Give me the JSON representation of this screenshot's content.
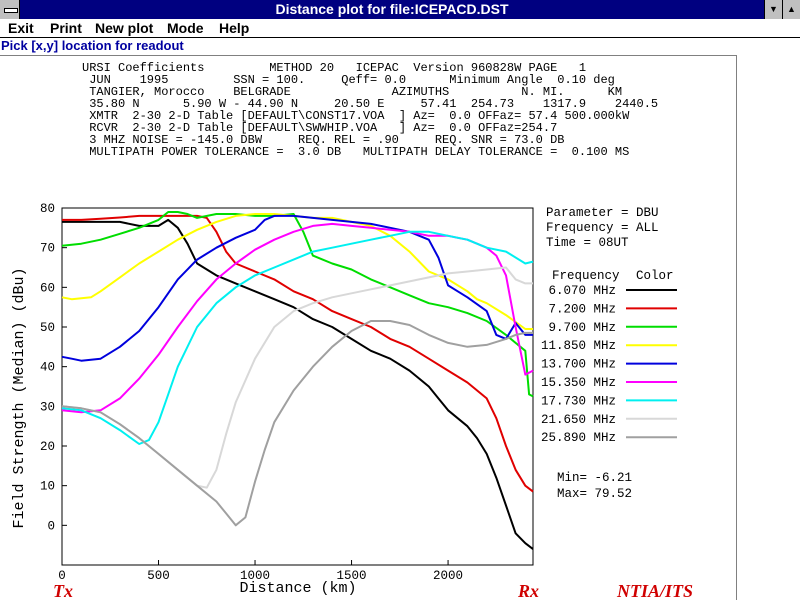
{
  "window": {
    "title": "Distance plot for file:ICEPACD.DST"
  },
  "menu": [
    "Exit",
    "Print",
    "New plot",
    "Mode",
    "Help"
  ],
  "status": "Pick [x,y] location for readout",
  "header_lines": [
    "URSI Coefficients         METHOD 20   ICEPAC  Version 960828W PAGE   1",
    " JUN    1995         SSN = 100.     Qeff= 0.0      Minimum Angle  0.10 deg",
    " TANGIER, Morocco    BELGRADE              AZIMUTHS          N. MI.      KM",
    " 35.80 N      5.90 W - 44.90 N     20.50 E     57.41  254.73    1317.9    2440.5",
    " XMTR  2-30 2-D Table [DEFAULT\\CONST17.VOA  ] Az=  0.0 OFFaz= 57.4 500.000kW",
    " RCVR  2-30 2-D Table [DEFAULT\\SWWHIP.VOA   ] Az=  0.0 OFFaz=254.7",
    " 3 MHZ NOISE = -145.0 DBW     REQ. REL = .90     REQ. SNR = 73.0 DB",
    " MULTIPATH POWER TOLERANCE =  3.0 DB   MULTIPATH DELAY TOLERANCE =  0.100 MS"
  ],
  "param_lines": [
    "Parameter = DBU",
    "Frequency = ALL",
    "Time = 08UT"
  ],
  "legend_header": {
    "freq": "Frequency",
    "color": "Color"
  },
  "min_label": "Min=   -6.21",
  "max_label": "Max=   79.52",
  "bottom": {
    "tx": "Tx",
    "rx": "Rx",
    "org": "NTIA/ITS"
  },
  "chart_data": {
    "type": "line",
    "xlabel": "Distance (km)",
    "ylabel": "Field Strength (Median) (dBu)",
    "xlim": [
      0,
      2440
    ],
    "ylim": [
      -10,
      80
    ],
    "xticks": [
      0,
      500,
      1000,
      1500,
      2000
    ],
    "yticks": [
      80,
      70,
      60,
      50,
      40,
      30,
      20,
      10,
      0
    ],
    "series": [
      {
        "name": "6.070 MHz",
        "color": "#000000",
        "points": [
          [
            0,
            76.5
          ],
          [
            100,
            76.5
          ],
          [
            200,
            76.5
          ],
          [
            300,
            76.5
          ],
          [
            400,
            75.5
          ],
          [
            500,
            75.5
          ],
          [
            550,
            77
          ],
          [
            600,
            75
          ],
          [
            650,
            71
          ],
          [
            700,
            66
          ],
          [
            800,
            63
          ],
          [
            900,
            61
          ],
          [
            1000,
            59
          ],
          [
            1100,
            57
          ],
          [
            1200,
            55
          ],
          [
            1300,
            52
          ],
          [
            1400,
            50
          ],
          [
            1500,
            47
          ],
          [
            1600,
            44
          ],
          [
            1700,
            42
          ],
          [
            1800,
            39
          ],
          [
            1900,
            35
          ],
          [
            1950,
            32
          ],
          [
            2000,
            29
          ],
          [
            2100,
            25
          ],
          [
            2150,
            22
          ],
          [
            2200,
            18
          ],
          [
            2250,
            12
          ],
          [
            2300,
            5
          ],
          [
            2350,
            -2
          ],
          [
            2400,
            -4.5
          ],
          [
            2440,
            -6
          ]
        ]
      },
      {
        "name": "7.200 MHz",
        "color": "#e00000",
        "points": [
          [
            0,
            77
          ],
          [
            100,
            77
          ],
          [
            200,
            77.3
          ],
          [
            300,
            77.6
          ],
          [
            400,
            78
          ],
          [
            500,
            78
          ],
          [
            600,
            78
          ],
          [
            700,
            78
          ],
          [
            750,
            77.5
          ],
          [
            800,
            74
          ],
          [
            850,
            69
          ],
          [
            900,
            66
          ],
          [
            1000,
            64
          ],
          [
            1100,
            62
          ],
          [
            1200,
            59
          ],
          [
            1300,
            57
          ],
          [
            1400,
            54
          ],
          [
            1500,
            52
          ],
          [
            1600,
            50
          ],
          [
            1700,
            47
          ],
          [
            1800,
            45
          ],
          [
            1900,
            42
          ],
          [
            2000,
            39
          ],
          [
            2100,
            36
          ],
          [
            2200,
            32
          ],
          [
            2250,
            27
          ],
          [
            2300,
            20
          ],
          [
            2350,
            14
          ],
          [
            2400,
            10
          ],
          [
            2440,
            8.5
          ]
        ]
      },
      {
        "name": "9.700 MHz",
        "color": "#00dd00",
        "points": [
          [
            0,
            70.5
          ],
          [
            100,
            71
          ],
          [
            200,
            72
          ],
          [
            300,
            73.5
          ],
          [
            400,
            75
          ],
          [
            500,
            77
          ],
          [
            550,
            79
          ],
          [
            600,
            79
          ],
          [
            650,
            78.5
          ],
          [
            700,
            77.5
          ],
          [
            800,
            78.5
          ],
          [
            900,
            78.5
          ],
          [
            1000,
            78
          ],
          [
            1100,
            78
          ],
          [
            1200,
            78.5
          ],
          [
            1250,
            74
          ],
          [
            1300,
            68
          ],
          [
            1350,
            67
          ],
          [
            1400,
            66
          ],
          [
            1500,
            64.5
          ],
          [
            1600,
            62
          ],
          [
            1700,
            60
          ],
          [
            1800,
            58
          ],
          [
            1900,
            56
          ],
          [
            2000,
            55
          ],
          [
            2100,
            53.5
          ],
          [
            2200,
            51.5
          ],
          [
            2300,
            48
          ],
          [
            2350,
            46
          ],
          [
            2400,
            44
          ],
          [
            2420,
            33
          ],
          [
            2440,
            32.5
          ]
        ]
      },
      {
        "name": "11.850 MHz",
        "color": "#ffff00",
        "points": [
          [
            0,
            57.5
          ],
          [
            50,
            57
          ],
          [
            150,
            57.5
          ],
          [
            200,
            59
          ],
          [
            300,
            62.5
          ],
          [
            400,
            66
          ],
          [
            500,
            69
          ],
          [
            600,
            72
          ],
          [
            700,
            74.5
          ],
          [
            800,
            76.5
          ],
          [
            900,
            78
          ],
          [
            1000,
            78.5
          ],
          [
            1100,
            78.5
          ],
          [
            1200,
            78
          ],
          [
            1300,
            77.5
          ],
          [
            1400,
            77.5
          ],
          [
            1500,
            76.5
          ],
          [
            1550,
            76
          ],
          [
            1600,
            75.5
          ],
          [
            1700,
            73
          ],
          [
            1800,
            69
          ],
          [
            1900,
            64
          ],
          [
            1950,
            63
          ],
          [
            2000,
            62
          ],
          [
            2100,
            59
          ],
          [
            2150,
            57
          ],
          [
            2200,
            56
          ],
          [
            2300,
            53
          ],
          [
            2400,
            49.5
          ],
          [
            2440,
            49.5
          ]
        ]
      },
      {
        "name": "13.700 MHz",
        "color": "#0000dd",
        "points": [
          [
            0,
            42.5
          ],
          [
            50,
            42
          ],
          [
            100,
            41.5
          ],
          [
            200,
            42
          ],
          [
            300,
            45
          ],
          [
            400,
            49
          ],
          [
            500,
            55
          ],
          [
            600,
            62
          ],
          [
            700,
            67
          ],
          [
            800,
            70
          ],
          [
            900,
            72.5
          ],
          [
            1000,
            74.5
          ],
          [
            1050,
            77
          ],
          [
            1100,
            78
          ],
          [
            1200,
            78
          ],
          [
            1300,
            77.5
          ],
          [
            1400,
            77
          ],
          [
            1500,
            76.5
          ],
          [
            1600,
            76
          ],
          [
            1700,
            75
          ],
          [
            1800,
            74
          ],
          [
            1900,
            72
          ],
          [
            1950,
            67.5
          ],
          [
            2000,
            60.5
          ],
          [
            2050,
            59
          ],
          [
            2100,
            57.5
          ],
          [
            2200,
            54
          ],
          [
            2250,
            48
          ],
          [
            2300,
            47
          ],
          [
            2350,
            51
          ],
          [
            2400,
            48
          ],
          [
            2440,
            48
          ]
        ]
      },
      {
        "name": "15.350 MHz",
        "color": "#ff00ff",
        "points": [
          [
            0,
            29
          ],
          [
            100,
            28.5
          ],
          [
            200,
            29
          ],
          [
            300,
            32
          ],
          [
            400,
            37
          ],
          [
            500,
            43
          ],
          [
            600,
            50
          ],
          [
            700,
            56.5
          ],
          [
            800,
            62
          ],
          [
            900,
            66
          ],
          [
            1000,
            69.5
          ],
          [
            1100,
            72
          ],
          [
            1200,
            74
          ],
          [
            1300,
            75.5
          ],
          [
            1400,
            76
          ],
          [
            1500,
            75.5
          ],
          [
            1600,
            75
          ],
          [
            1700,
            74.5
          ],
          [
            1800,
            74
          ],
          [
            1900,
            73
          ],
          [
            2000,
            73
          ],
          [
            2050,
            72.5
          ],
          [
            2100,
            72
          ],
          [
            2200,
            70
          ],
          [
            2250,
            68
          ],
          [
            2300,
            63
          ],
          [
            2350,
            50
          ],
          [
            2400,
            38
          ],
          [
            2440,
            39
          ]
        ]
      },
      {
        "name": "17.730 MHz",
        "color": "#00f0f0",
        "points": [
          [
            0,
            29.5
          ],
          [
            100,
            29
          ],
          [
            200,
            27
          ],
          [
            300,
            24
          ],
          [
            400,
            20.5
          ],
          [
            450,
            21.5
          ],
          [
            500,
            26
          ],
          [
            550,
            33
          ],
          [
            600,
            40
          ],
          [
            700,
            50
          ],
          [
            800,
            56
          ],
          [
            900,
            60
          ],
          [
            1000,
            63
          ],
          [
            1100,
            65
          ],
          [
            1200,
            67
          ],
          [
            1300,
            69
          ],
          [
            1400,
            70
          ],
          [
            1500,
            71
          ],
          [
            1600,
            72
          ],
          [
            1700,
            73
          ],
          [
            1800,
            74
          ],
          [
            1900,
            74
          ],
          [
            2000,
            73
          ],
          [
            2100,
            72
          ],
          [
            2200,
            70
          ],
          [
            2300,
            69
          ],
          [
            2400,
            66
          ],
          [
            2440,
            66.5
          ]
        ]
      },
      {
        "name": "21.650 MHz",
        "color": "#d8d8d8",
        "points": [
          [
            0,
            30
          ],
          [
            100,
            29.5
          ],
          [
            200,
            28.5
          ],
          [
            300,
            25.5
          ],
          [
            400,
            22
          ],
          [
            500,
            18
          ],
          [
            600,
            14
          ],
          [
            700,
            10
          ],
          [
            750,
            9.5
          ],
          [
            800,
            14
          ],
          [
            850,
            23
          ],
          [
            900,
            31
          ],
          [
            1000,
            42
          ],
          [
            1100,
            50
          ],
          [
            1200,
            54
          ],
          [
            1300,
            56
          ],
          [
            1400,
            57.5
          ],
          [
            1500,
            58.5
          ],
          [
            1600,
            59.5
          ],
          [
            1700,
            60.5
          ],
          [
            1800,
            61.5
          ],
          [
            1900,
            62.5
          ],
          [
            2000,
            63.5
          ],
          [
            2100,
            64
          ],
          [
            2200,
            64.5
          ],
          [
            2300,
            65
          ],
          [
            2350,
            62
          ],
          [
            2400,
            61
          ],
          [
            2440,
            61
          ]
        ]
      },
      {
        "name": "25.890 MHz",
        "color": "#a0a0a0",
        "points": [
          [
            0,
            30
          ],
          [
            100,
            29.5
          ],
          [
            200,
            28.5
          ],
          [
            300,
            25.5
          ],
          [
            400,
            22
          ],
          [
            500,
            18
          ],
          [
            600,
            14
          ],
          [
            700,
            10
          ],
          [
            800,
            6
          ],
          [
            850,
            3
          ],
          [
            900,
            0
          ],
          [
            950,
            2
          ],
          [
            1000,
            11
          ],
          [
            1050,
            19
          ],
          [
            1100,
            26
          ],
          [
            1200,
            34
          ],
          [
            1300,
            40
          ],
          [
            1400,
            45
          ],
          [
            1500,
            49
          ],
          [
            1600,
            51.5
          ],
          [
            1700,
            51.5
          ],
          [
            1800,
            50.5
          ],
          [
            1900,
            48
          ],
          [
            2000,
            46
          ],
          [
            2100,
            45
          ],
          [
            2200,
            45.5
          ],
          [
            2300,
            47
          ],
          [
            2350,
            48
          ],
          [
            2400,
            48.5
          ],
          [
            2440,
            48.5
          ]
        ]
      }
    ]
  }
}
